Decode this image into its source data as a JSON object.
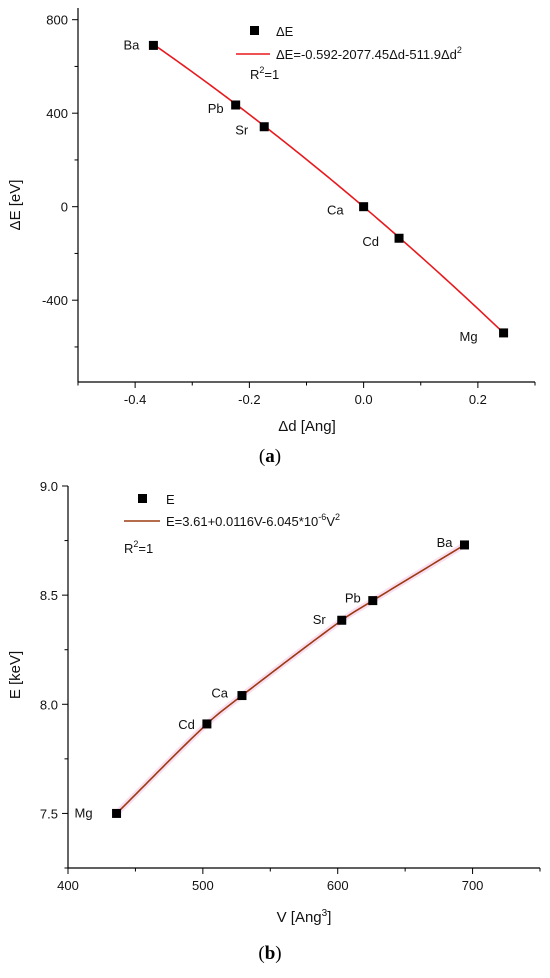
{
  "chart_data": [
    {
      "type": "scatter",
      "panel": "(a)",
      "caption_letter": "a",
      "xlabel": "Δd [Ang]",
      "ylabel": "ΔE [eV]",
      "xlim": [
        -0.5,
        0.3
      ],
      "ylim": [
        -750,
        850
      ],
      "xticks": [
        -0.4,
        -0.2,
        0.0,
        0.2
      ],
      "xtick_labels": [
        "-0.4",
        "-0.2",
        "0.0",
        "0.2"
      ],
      "yticks": [
        -400,
        0,
        400,
        800
      ],
      "ytick_labels": [
        "-400",
        "0",
        "400",
        "800"
      ],
      "grid": false,
      "legend_position": "top-right",
      "series": [
        {
          "name": "ΔE",
          "kind": "points",
          "points": [
            {
              "label": "Ba",
              "x": -0.368,
              "y": 690
            },
            {
              "label": "Pb",
              "x": -0.224,
              "y": 435
            },
            {
              "label": "Sr",
              "x": -0.174,
              "y": 342
            },
            {
              "label": "Ca",
              "x": 0.0,
              "y": 0
            },
            {
              "label": "Cd",
              "x": 0.062,
              "y": -135
            },
            {
              "label": "Mg",
              "x": 0.245,
              "y": -540
            }
          ]
        },
        {
          "name": "ΔE=-0.592-2077.45Δd-511.9Δd²",
          "kind": "fit",
          "coefficients": {
            "a": -0.592,
            "b": -2077.45,
            "c": -511.9
          },
          "x_range": [
            -0.368,
            0.245
          ]
        }
      ],
      "legend": {
        "points_label": "ΔE",
        "fit_label_main": "ΔE=-0.592-2077.45Δd-511.9Δd",
        "fit_label_sup": "2",
        "r2_main": "R",
        "r2_sup": "2",
        "r2_value": "=1"
      },
      "colors": {
        "points": "#000000",
        "fit": "#e8191d",
        "axis": "#000000"
      }
    },
    {
      "type": "scatter",
      "panel": "(b)",
      "caption_letter": "b",
      "xlabel_main": "V [Ang",
      "xlabel_sup": "3",
      "xlabel_end": "]",
      "ylabel": "E [keV]",
      "xlim": [
        400,
        750
      ],
      "ylim": [
        7.25,
        9.0
      ],
      "xticks": [
        400,
        500,
        600,
        700
      ],
      "xtick_labels": [
        "400",
        "500",
        "600",
        "700"
      ],
      "yticks": [
        7.5,
        8.0,
        8.5,
        9.0
      ],
      "ytick_labels": [
        "7.5",
        "8.0",
        "8.5",
        "9.0"
      ],
      "grid": false,
      "legend_position": "top-left",
      "series": [
        {
          "name": "E",
          "kind": "points",
          "points": [
            {
              "label": "Mg",
              "x": 436,
              "y": 7.5
            },
            {
              "label": "Cd",
              "x": 503,
              "y": 7.91
            },
            {
              "label": "Ca",
              "x": 529,
              "y": 8.04
            },
            {
              "label": "Sr",
              "x": 603,
              "y": 8.385
            },
            {
              "label": "Pb",
              "x": 626,
              "y": 8.475
            },
            {
              "label": "Ba",
              "x": 694,
              "y": 8.73
            }
          ]
        },
        {
          "name": "E=3.61+0.0116V-6.045*10⁻⁶V²",
          "kind": "fit",
          "x_range": [
            436,
            694
          ]
        }
      ],
      "legend": {
        "points_label": "E",
        "fit_label_main": "E=3.61+0.0116V-6.045*10",
        "fit_label_sup1": "-6",
        "fit_label_mid": "V",
        "fit_label_sup2": "2",
        "r2_main": "R",
        "r2_sup": "2",
        "r2_value": "=1"
      },
      "colors": {
        "points": "#000000",
        "fit": "#9c3b10",
        "axis": "#000000",
        "halo": "#f2b6e0"
      }
    }
  ]
}
